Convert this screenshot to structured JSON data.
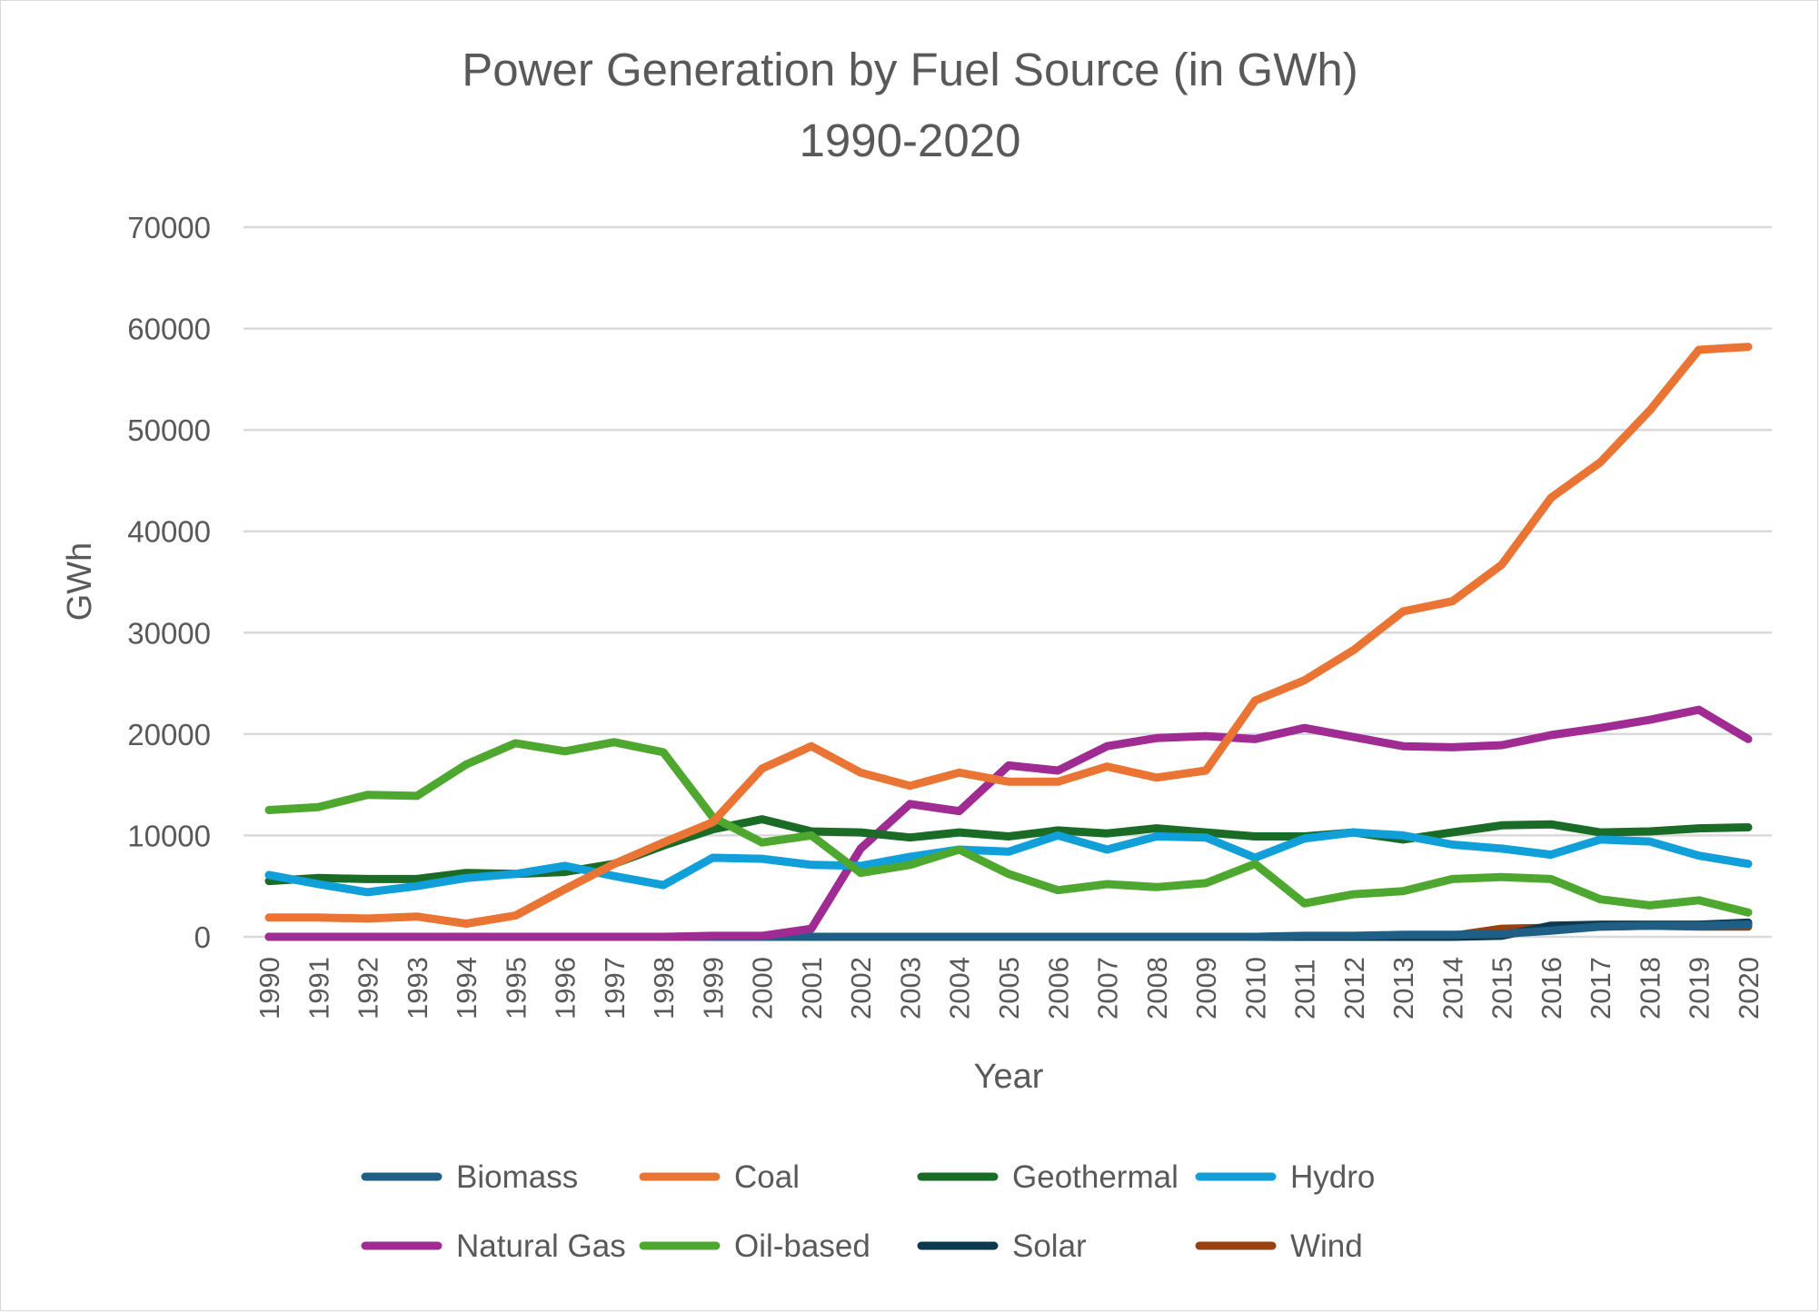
{
  "chart_data": {
    "type": "line",
    "title": "Power Generation by Fuel Source (in GWh)",
    "subtitle": "1990-2020",
    "xlabel": "Year",
    "ylabel": "GWh",
    "ylim": [
      0,
      70000
    ],
    "yticks": [
      0,
      10000,
      20000,
      30000,
      40000,
      50000,
      60000,
      70000
    ],
    "grid": true,
    "legend_position": "bottom",
    "categories": [
      "1990",
      "1991",
      "1992",
      "1993",
      "1994",
      "1995",
      "1996",
      "1997",
      "1998",
      "1999",
      "2000",
      "2001",
      "2002",
      "2003",
      "2004",
      "2005",
      "2006",
      "2007",
      "2008",
      "2009",
      "2010",
      "2011",
      "2012",
      "2013",
      "2014",
      "2015",
      "2016",
      "2017",
      "2018",
      "2019",
      "2020"
    ],
    "series": [
      {
        "name": "Biomass",
        "color": "#1f5f86",
        "values": [
          0,
          0,
          0,
          0,
          0,
          0,
          0,
          0,
          0,
          0,
          0,
          0,
          0,
          0,
          0,
          0,
          0,
          0,
          0,
          0,
          0,
          100,
          100,
          200,
          200,
          300,
          600,
          1000,
          1100,
          1100,
          1200
        ]
      },
      {
        "name": "Coal",
        "color": "#ea7434",
        "values": [
          1900,
          1900,
          1800,
          2000,
          1300,
          2100,
          4700,
          7200,
          9300,
          11300,
          16600,
          18800,
          16200,
          14900,
          16200,
          15300,
          15300,
          16800,
          15700,
          16400,
          23300,
          25300,
          28300,
          32100,
          33100,
          36700,
          43300,
          46800,
          51900,
          57900,
          58200
        ]
      },
      {
        "name": "Geothermal",
        "color": "#1a6b26",
        "values": [
          5500,
          5800,
          5700,
          5700,
          6300,
          6200,
          6400,
          7200,
          9000,
          10600,
          11600,
          10400,
          10300,
          9800,
          10300,
          9900,
          10500,
          10200,
          10700,
          10300,
          9900,
          9900,
          10300,
          9600,
          10300,
          11000,
          11100,
          10300,
          10400,
          10700,
          10800
        ]
      },
      {
        "name": "Hydro",
        "color": "#109fd8",
        "values": [
          6100,
          5200,
          4400,
          5000,
          5800,
          6200,
          7000,
          6000,
          5100,
          7800,
          7700,
          7100,
          7000,
          7900,
          8600,
          8400,
          10000,
          8600,
          9900,
          9800,
          7800,
          9700,
          10300,
          10000,
          9100,
          8700,
          8100,
          9600,
          9400,
          8000,
          7200
        ]
      },
      {
        "name": "Natural Gas",
        "color": "#a02b93",
        "values": [
          0,
          0,
          0,
          0,
          0,
          0,
          0,
          0,
          0,
          100,
          100,
          800,
          8700,
          13100,
          12400,
          16900,
          16400,
          18800,
          19600,
          19800,
          19500,
          20600,
          19700,
          18800,
          18700,
          18900,
          19900,
          20600,
          21400,
          22400,
          19500
        ]
      },
      {
        "name": "Oil-based",
        "color": "#4ea72e",
        "values": [
          12500,
          12800,
          14000,
          13900,
          17000,
          19100,
          18300,
          19200,
          18200,
          11800,
          9300,
          10000,
          6300,
          7100,
          8600,
          6200,
          4600,
          5200,
          4900,
          5300,
          7200,
          3300,
          4200,
          4500,
          5700,
          5900,
          5700,
          3700,
          3100,
          3600,
          2400
        ]
      },
      {
        "name": "Solar",
        "color": "#0e3a50",
        "values": [
          0,
          0,
          0,
          0,
          0,
          0,
          0,
          0,
          0,
          0,
          0,
          0,
          0,
          0,
          0,
          0,
          0,
          0,
          0,
          0,
          0,
          0,
          0,
          0,
          0,
          100,
          1100,
          1200,
          1200,
          1200,
          1400
        ]
      },
      {
        "name": "Wind",
        "color": "#974111",
        "values": [
          0,
          0,
          0,
          0,
          0,
          0,
          0,
          0,
          0,
          0,
          0,
          0,
          0,
          0,
          0,
          0,
          0,
          0,
          0,
          0,
          0,
          0,
          0,
          0,
          100,
          800,
          900,
          1000,
          1100,
          1000,
          1000
        ]
      }
    ]
  }
}
